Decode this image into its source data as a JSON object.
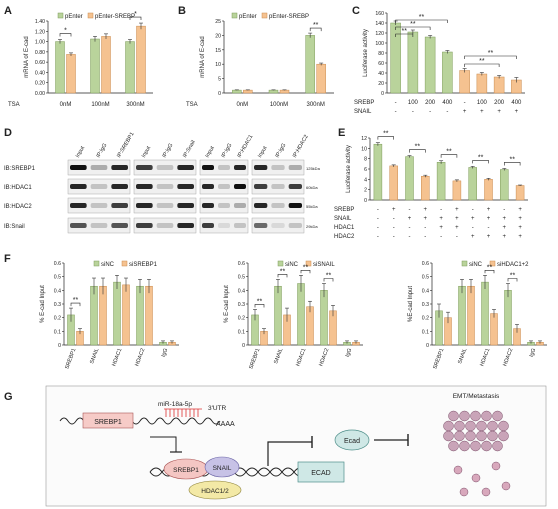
{
  "colors": {
    "green": "#b9d39b",
    "greenDark": "#7f9c5a",
    "orange": "#f5c290",
    "orangeDark": "#c98a4e",
    "err": "#333333",
    "axis": "#222222"
  },
  "panels": {
    "A": {
      "letter": "A",
      "legend": [
        "pEnter",
        "pEnter-SREBP"
      ],
      "ylabel": "mRNA of E-cad",
      "yticks": [
        "0.00",
        "0.20",
        "0.40",
        "0.60",
        "0.80",
        "1.00",
        "1.20",
        "1.40"
      ],
      "row_label": "TSA",
      "categories": [
        "0nM",
        "100nM",
        "300nM"
      ],
      "sig": [
        "*",
        "*"
      ]
    },
    "B": {
      "letter": "B",
      "legend": [
        "pEnter",
        "pEnter-SREBP"
      ],
      "ylabel": "mRNA of E-cad",
      "yticks": [
        "0",
        "5",
        "10",
        "15",
        "20",
        "25"
      ],
      "row_label": "TSA",
      "categories": [
        "0nM",
        "100nM",
        "300nM"
      ],
      "sig": [
        "**"
      ]
    },
    "C": {
      "letter": "C",
      "ylabel": "Luciferase activity",
      "yticks": [
        "0",
        "20",
        "40",
        "60",
        "80",
        "100",
        "120",
        "140",
        "160"
      ],
      "row1_label": "SREBP",
      "row1": [
        "-",
        "100",
        "200",
        "400",
        "-",
        "100",
        "200",
        "400"
      ],
      "row2_label": "SNAIL",
      "row2": [
        "-",
        "-",
        "-",
        "-",
        "+",
        "+",
        "+",
        "+"
      ],
      "sig": [
        "**",
        "**",
        "**",
        "**",
        "**"
      ]
    },
    "D": {
      "letter": "D",
      "col_labels_1": [
        "Input",
        "IP:IgG",
        "IP:SREBP1"
      ],
      "col_labels_2": [
        "Input",
        "IP:IgG",
        "IP:Snail"
      ],
      "col_labels_3": [
        "Input",
        "IP:IgG",
        "IP:HDAC1"
      ],
      "col_labels_4": [
        "Input",
        "IP:IgG",
        "IP:HDAC2"
      ],
      "row_labels": [
        "IB:SREBP1",
        "IB:HDAC1",
        "IB:HDAC2",
        "IB:Snail"
      ],
      "kda": [
        "125kDa",
        "60kDa",
        "55kDa",
        "29kDa"
      ]
    },
    "E": {
      "letter": "E",
      "ylabel": "Luciferase activity",
      "yticks": [
        "0",
        "2",
        "4",
        "6",
        "8",
        "10",
        "12"
      ],
      "rows": [
        {
          "label": "SREBP",
          "vals": [
            "-",
            "+",
            "-",
            "+",
            "-",
            "+",
            "-",
            "+",
            "-",
            "+"
          ]
        },
        {
          "label": "SNAIL",
          "vals": [
            "-",
            "-",
            "+",
            "+",
            "+",
            "+",
            "+",
            "+",
            "+",
            "+"
          ]
        },
        {
          "label": "HDAC1",
          "vals": [
            "-",
            "-",
            "-",
            "-",
            "+",
            "+",
            "-",
            "-",
            "+",
            "+"
          ]
        },
        {
          "label": "HDAC2",
          "vals": [
            "-",
            "-",
            "-",
            "-",
            "-",
            "-",
            "+",
            "+",
            "+",
            "+"
          ]
        }
      ],
      "sig": [
        "**",
        "**",
        "**",
        "**",
        "**"
      ]
    },
    "F": {
      "letter": "F",
      "charts": [
        {
          "legend": [
            "siNC",
            "siSREBP1"
          ],
          "ylabel": "% E-cad Input",
          "yticks": [
            "0",
            "0.1",
            "0.2",
            "0.3",
            "0.4",
            "0.5",
            "0.6"
          ],
          "categories": [
            "SREBP1",
            "SNAIL",
            "HDAC1",
            "HDAC2",
            "IgG"
          ],
          "sig": [
            "**"
          ]
        },
        {
          "legend": [
            "siNC",
            "siSNAIL"
          ],
          "ylabel": "% E-cad Input",
          "yticks": [
            "0",
            "0.1",
            "0.2",
            "0.3",
            "0.4",
            "0.5",
            "0.6"
          ],
          "categories": [
            "SREBP1",
            "SNAIL",
            "HDAC1",
            "HDAC2",
            "IgG"
          ],
          "sig": [
            "**",
            "**",
            "**",
            "**"
          ]
        },
        {
          "legend": [
            "siNC",
            "siHDAC1+2"
          ],
          "ylabel": "%E-cad Input",
          "yticks": [
            "0",
            "0.1",
            "0.2",
            "0.3",
            "0.4",
            "0.5",
            "0.6"
          ],
          "categories": [
            "SREBP1",
            "SNAIL",
            "HDAC1",
            "HDAC2",
            "IgG"
          ],
          "sig": [
            "**",
            "**"
          ]
        }
      ]
    },
    "G": {
      "letter": "G",
      "srebp1": "SREBP1",
      "mirna": "miR-18a-5p",
      "utr": "3'UTR",
      "polyA": "AAAA",
      "complex": [
        "SREBP1",
        "SNAIL",
        "HDAC1/2"
      ],
      "ecad_gene": "ECAD",
      "ecad_protein": "Ecad",
      "outcome": "EMT/Metastasis"
    }
  },
  "chart_data": [
    {
      "type": "bar",
      "id": "A",
      "categories": [
        "0nM",
        "100nM",
        "300nM"
      ],
      "series": [
        {
          "name": "pEnter",
          "values": [
            1.0,
            1.05,
            1.0
          ],
          "err": [
            0.04,
            0.05,
            0.04
          ]
        },
        {
          "name": "pEnter-SREBP",
          "values": [
            0.75,
            1.1,
            1.3
          ],
          "err": [
            0.03,
            0.05,
            0.06
          ]
        }
      ],
      "ylabel": "mRNA of E-cad",
      "ylim": [
        0,
        1.4
      ]
    },
    {
      "type": "bar",
      "id": "B",
      "categories": [
        "0nM",
        "100nM",
        "300nM"
      ],
      "series": [
        {
          "name": "pEnter",
          "values": [
            1.0,
            1.0,
            20.0
          ],
          "err": [
            0.1,
            0.1,
            0.8
          ]
        },
        {
          "name": "pEnter-SREBP",
          "values": [
            1.0,
            1.0,
            10.0
          ],
          "err": [
            0.1,
            0.1,
            0.4
          ]
        }
      ],
      "ylabel": "mRNA of E-cad",
      "ylim": [
        0,
        25
      ]
    },
    {
      "type": "bar",
      "id": "C",
      "values": [
        140,
        122,
        112,
        82,
        45,
        38,
        32,
        26
      ],
      "err": [
        4,
        4,
        3,
        3,
        4,
        3,
        3,
        5
      ],
      "ylabel": "Luciferase activity",
      "ylim": [
        0,
        160
      ]
    },
    {
      "type": "bar",
      "id": "E",
      "values": [
        10.8,
        6.6,
        8.4,
        4.6,
        7.3,
        3.7,
        6.3,
        4.0,
        5.9,
        2.8
      ],
      "err": [
        0.3,
        0.2,
        0.2,
        0.2,
        0.3,
        0.2,
        0.2,
        0.2,
        0.2,
        0.1
      ],
      "ylabel": "Luciferase activity",
      "ylim": [
        0,
        12
      ]
    },
    {
      "type": "bar",
      "id": "F1",
      "categories": [
        "SREBP1",
        "SNAIL",
        "HDAC1",
        "HDAC2",
        "IgG"
      ],
      "series": [
        {
          "name": "siNC",
          "values": [
            0.22,
            0.43,
            0.46,
            0.43,
            0.02
          ],
          "err": [
            0.05,
            0.06,
            0.05,
            0.05,
            0.01
          ]
        },
        {
          "name": "siSREBP1",
          "values": [
            0.1,
            0.43,
            0.44,
            0.43,
            0.02
          ],
          "err": [
            0.02,
            0.06,
            0.05,
            0.05,
            0.01
          ]
        }
      ],
      "ylabel": "% E-cad Input",
      "ylim": [
        0,
        0.6
      ]
    },
    {
      "type": "bar",
      "id": "F2",
      "categories": [
        "SREBP1",
        "SNAIL",
        "HDAC1",
        "HDAC2",
        "IgG"
      ],
      "series": [
        {
          "name": "siNC",
          "values": [
            0.22,
            0.43,
            0.45,
            0.4,
            0.02
          ],
          "err": [
            0.04,
            0.05,
            0.06,
            0.05,
            0.01
          ]
        },
        {
          "name": "siSNAIL",
          "values": [
            0.1,
            0.22,
            0.28,
            0.25,
            0.02
          ],
          "err": [
            0.02,
            0.05,
            0.04,
            0.04,
            0.01
          ]
        }
      ],
      "ylabel": "% E-cad Input",
      "ylim": [
        0,
        0.6
      ]
    },
    {
      "type": "bar",
      "id": "F3",
      "categories": [
        "SREBP1",
        "SNAIL",
        "HDAC1",
        "HDAC2",
        "IgG"
      ],
      "series": [
        {
          "name": "siNC",
          "values": [
            0.25,
            0.43,
            0.46,
            0.4,
            0.02
          ],
          "err": [
            0.05,
            0.05,
            0.05,
            0.05,
            0.01
          ]
        },
        {
          "name": "siHDAC1+2",
          "values": [
            0.2,
            0.43,
            0.23,
            0.12,
            0.02
          ],
          "err": [
            0.04,
            0.05,
            0.03,
            0.03,
            0.01
          ]
        }
      ],
      "ylabel": "%E-cad Input",
      "ylim": [
        0,
        0.6
      ]
    }
  ]
}
